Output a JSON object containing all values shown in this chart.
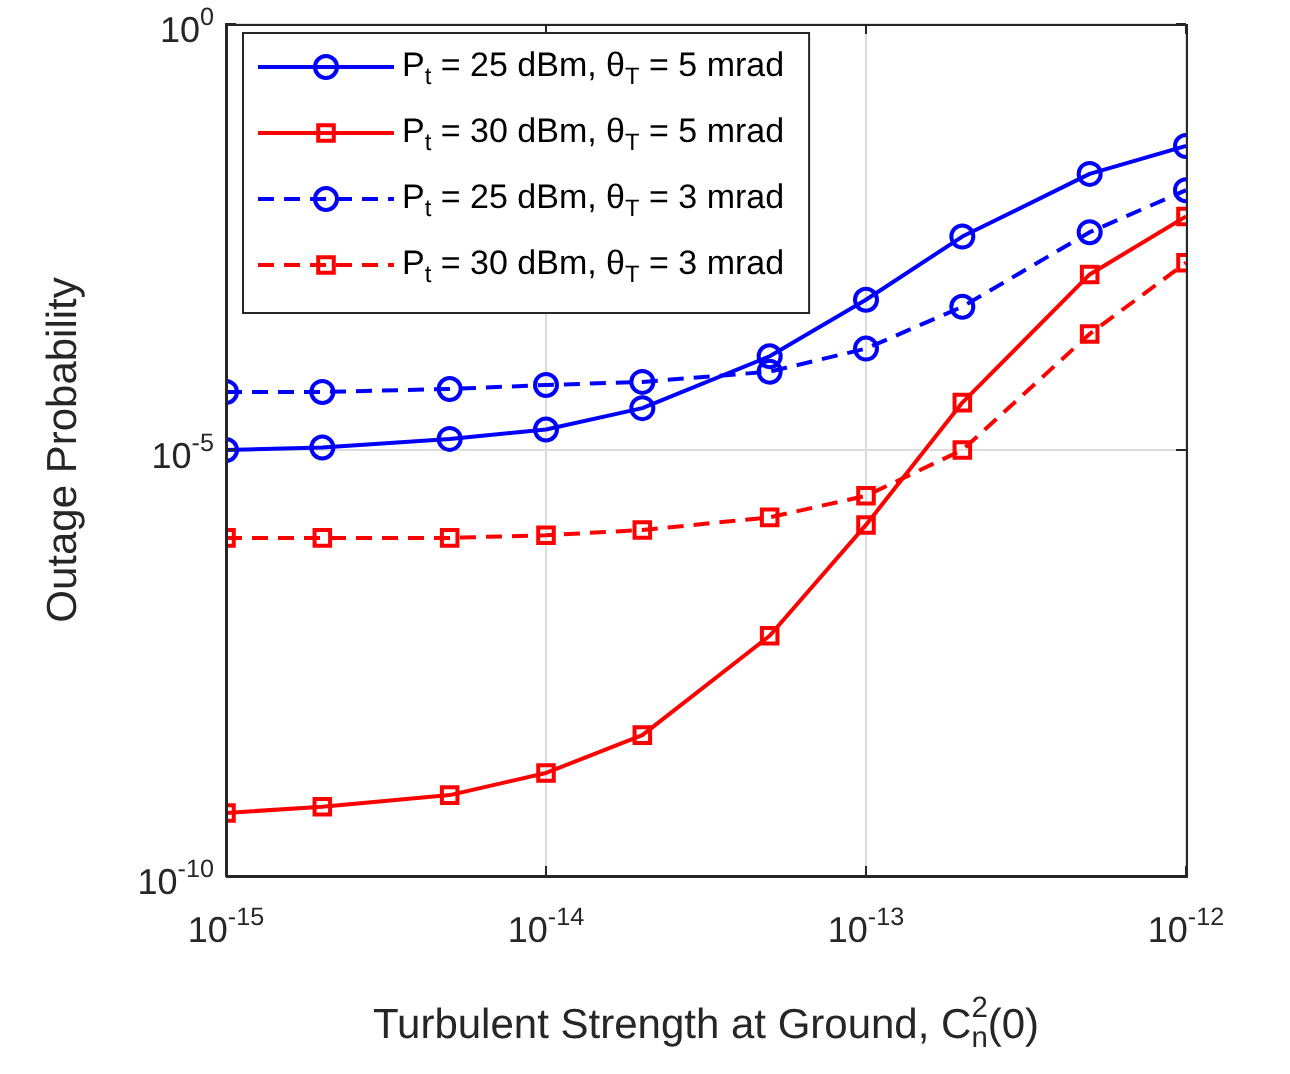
{
  "chart_data": {
    "type": "line",
    "xlabel": "Turbulent Strength at Ground, C$_{n}$$^{2}$(0)",
    "ylabel": "Outage Probability",
    "x": [
      1e-15,
      2e-15,
      5e-15,
      1e-14,
      2e-14,
      5e-14,
      1e-13,
      2e-13,
      5e-13,
      1e-12
    ],
    "series": [
      {
        "name": "P$_{t}$ = 25 dBm, θ$_{T}$ = 5 mrad",
        "color": "#0000ff",
        "marker": "circle",
        "line_style": "solid",
        "values": [
          1e-05,
          1.07e-05,
          1.35e-05,
          1.74e-05,
          3.1e-05,
          0.000126,
          0.00058,
          0.0032,
          0.0174,
          0.037
        ]
      },
      {
        "name": "P$_{t}$ = 30 dBm, θ$_{T}$ = 5 mrad",
        "color": "#ff0000",
        "marker": "square",
        "line_style": "solid",
        "values": [
          5.5e-10,
          6.5e-10,
          8.9e-10,
          1.62e-09,
          4.5e-09,
          6.6e-08,
          1.32e-06,
          3.6e-05,
          0.00115,
          0.0055
        ]
      },
      {
        "name": "P$_{t}$ = 25 dBm, θ$_{T}$ = 3 mrad",
        "color": "#0000ff",
        "marker": "circle",
        "line_style": "dashed",
        "values": [
          4.8e-05,
          4.8e-05,
          5.2e-05,
          5.8e-05,
          6.3e-05,
          8.3e-05,
          0.000155,
          0.00048,
          0.0036,
          0.0112
        ]
      },
      {
        "name": "P$_{t}$ = 30 dBm, θ$_{T}$ = 3 mrad",
        "color": "#ff0000",
        "marker": "square",
        "line_style": "dashed",
        "values": [
          9.3e-07,
          9.3e-07,
          9.3e-07,
          1e-06,
          1.15e-06,
          1.62e-06,
          2.9e-06,
          1e-05,
          0.00023,
          0.00158
        ]
      }
    ],
    "log": "xy",
    "xlim": [
      1e-15,
      1e-12
    ],
    "ylim": [
      1e-10,
      1
    ],
    "xticks": [
      {
        "value": 1e-15,
        "label": "10$^{-15}$"
      },
      {
        "value": 1e-14,
        "label": "10$^{-14}$"
      },
      {
        "value": 1e-13,
        "label": "10$^{-13}$"
      },
      {
        "value": 1e-12,
        "label": "10$^{-12}$"
      }
    ],
    "yticks": [
      {
        "value": 1e-10,
        "label": "10$^{-10}$"
      },
      {
        "value": 1e-05,
        "label": "10$^{-5}$"
      },
      {
        "value": 1,
        "label": "10$^{0}$"
      }
    ],
    "grid": true,
    "legend": "top left"
  }
}
